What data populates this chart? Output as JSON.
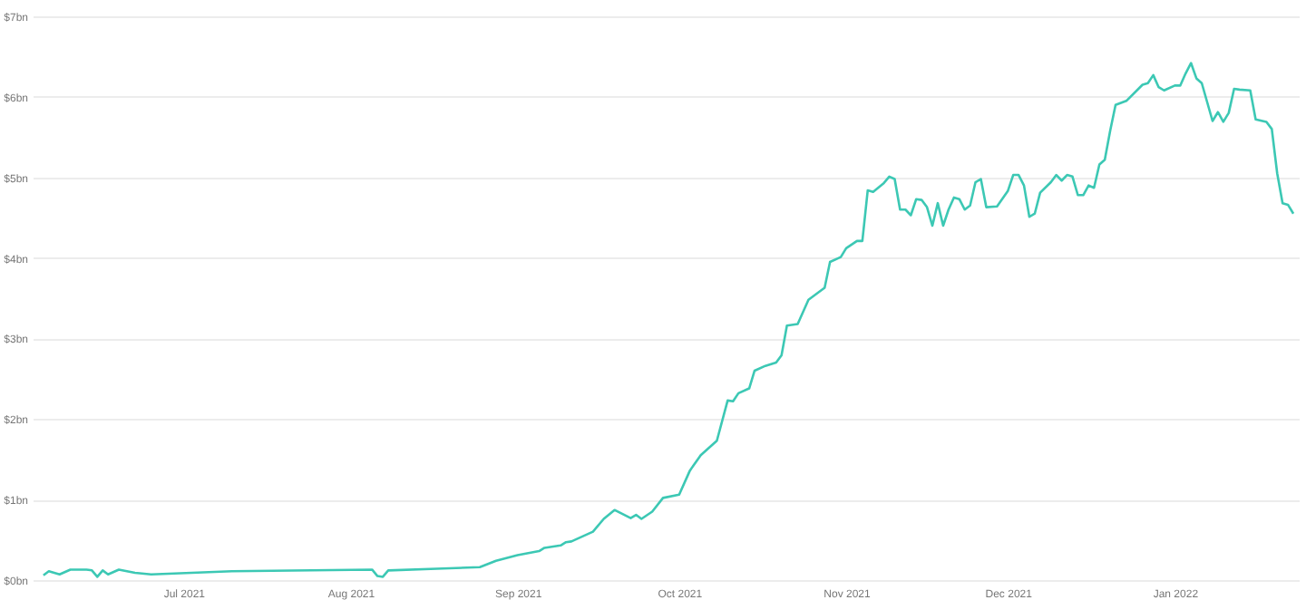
{
  "chart_data": {
    "type": "line",
    "x": [
      "2021-06-05",
      "2021-06-06",
      "2021-06-08",
      "2021-06-10",
      "2021-06-13",
      "2021-06-14",
      "2021-06-15",
      "2021-06-16",
      "2021-06-17",
      "2021-06-19",
      "2021-06-22",
      "2021-06-25",
      "2021-07-10",
      "2021-08-05",
      "2021-08-06",
      "2021-08-07",
      "2021-08-08",
      "2021-08-17",
      "2021-08-25",
      "2021-08-28",
      "2021-09-01",
      "2021-09-05",
      "2021-09-06",
      "2021-09-09",
      "2021-09-10",
      "2021-09-11",
      "2021-09-15",
      "2021-09-17",
      "2021-09-19",
      "2021-09-22",
      "2021-09-23",
      "2021-09-24",
      "2021-09-26",
      "2021-09-28",
      "2021-10-01",
      "2021-10-03",
      "2021-10-05",
      "2021-10-08",
      "2021-10-10",
      "2021-10-11",
      "2021-10-12",
      "2021-10-14",
      "2021-10-15",
      "2021-10-17",
      "2021-10-19",
      "2021-10-20",
      "2021-10-21",
      "2021-10-23",
      "2021-10-25",
      "2021-10-28",
      "2021-10-29",
      "2021-10-31",
      "2021-11-01",
      "2021-11-03",
      "2021-11-04",
      "2021-11-05",
      "2021-11-06",
      "2021-11-08",
      "2021-11-09",
      "2021-11-10",
      "2021-11-11",
      "2021-11-12",
      "2021-11-13",
      "2021-11-14",
      "2021-11-15",
      "2021-11-16",
      "2021-11-17",
      "2021-11-18",
      "2021-11-19",
      "2021-11-20",
      "2021-11-21",
      "2021-11-22",
      "2021-11-23",
      "2021-11-24",
      "2021-11-25",
      "2021-11-26",
      "2021-11-27",
      "2021-11-29",
      "2021-12-01",
      "2021-12-02",
      "2021-12-03",
      "2021-12-04",
      "2021-12-05",
      "2021-12-06",
      "2021-12-07",
      "2021-12-09",
      "2021-12-10",
      "2021-12-11",
      "2021-12-12",
      "2021-12-13",
      "2021-12-14",
      "2021-12-15",
      "2021-12-16",
      "2021-12-17",
      "2021-12-18",
      "2021-12-19",
      "2021-12-20",
      "2021-12-21",
      "2021-12-23",
      "2021-12-26",
      "2021-12-27",
      "2021-12-28",
      "2021-12-29",
      "2021-12-30",
      "2022-01-01",
      "2022-01-02",
      "2022-01-03",
      "2022-01-04",
      "2022-01-05",
      "2022-01-06",
      "2022-01-08",
      "2022-01-09",
      "2022-01-10",
      "2022-01-11",
      "2022-01-12",
      "2022-01-13",
      "2022-01-15",
      "2022-01-16",
      "2022-01-18",
      "2022-01-19",
      "2022-01-20",
      "2022-01-21",
      "2022-01-22",
      "2022-01-23"
    ],
    "series": [
      {
        "color": "#3cc8b4",
        "values": [
          0.06,
          0.11,
          0.07,
          0.13,
          0.13,
          0.12,
          0.04,
          0.12,
          0.07,
          0.13,
          0.09,
          0.07,
          0.11,
          0.13,
          0.05,
          0.04,
          0.12,
          0.14,
          0.16,
          0.24,
          0.31,
          0.36,
          0.4,
          0.43,
          0.47,
          0.48,
          0.6,
          0.76,
          0.87,
          0.77,
          0.81,
          0.76,
          0.85,
          1.02,
          1.06,
          1.36,
          1.55,
          1.73,
          2.23,
          2.22,
          2.32,
          2.38,
          2.6,
          2.66,
          2.7,
          2.79,
          3.16,
          3.18,
          3.48,
          3.63,
          3.95,
          4.01,
          4.12,
          4.21,
          4.21,
          4.84,
          4.82,
          4.93,
          5.01,
          4.98,
          4.6,
          4.6,
          4.53,
          4.73,
          4.72,
          4.63,
          4.4,
          4.68,
          4.4,
          4.6,
          4.75,
          4.73,
          4.6,
          4.65,
          4.94,
          4.98,
          4.63,
          4.64,
          4.83,
          5.03,
          5.03,
          4.9,
          4.51,
          4.55,
          4.81,
          4.94,
          5.03,
          4.96,
          5.03,
          5.01,
          4.78,
          4.78,
          4.9,
          4.87,
          5.16,
          5.22,
          5.58,
          5.9,
          5.95,
          6.15,
          6.17,
          6.27,
          6.12,
          6.08,
          6.14,
          6.14,
          6.29,
          6.42,
          6.23,
          6.17,
          5.7,
          5.81,
          5.69,
          5.8,
          6.1,
          6.09,
          6.08,
          5.72,
          5.69,
          5.6,
          5.05,
          4.68,
          4.66,
          4.55
        ]
      }
    ],
    "xlim": [
      "2021-06-03",
      "2022-01-24"
    ],
    "xticks": [
      {
        "value": "2021-07-01",
        "label": "Jul 2021"
      },
      {
        "value": "2021-08-01",
        "label": "Aug 2021"
      },
      {
        "value": "2021-09-01",
        "label": "Sep 2021"
      },
      {
        "value": "2021-10-01",
        "label": "Oct 2021"
      },
      {
        "value": "2021-11-01",
        "label": "Nov 2021"
      },
      {
        "value": "2021-12-01",
        "label": "Dec 2021"
      },
      {
        "value": "2022-01-01",
        "label": "Jan 2022"
      }
    ],
    "ylim": [
      0,
      7
    ],
    "yticks": [
      {
        "value": 0,
        "label": "$0bn"
      },
      {
        "value": 1,
        "label": "$1bn"
      },
      {
        "value": 2,
        "label": "$2bn"
      },
      {
        "value": 3,
        "label": "$3bn"
      },
      {
        "value": 4,
        "label": "$4bn"
      },
      {
        "value": 5,
        "label": "$5bn"
      },
      {
        "value": 6,
        "label": "$6bn"
      },
      {
        "value": 7,
        "label": "$7bn"
      }
    ],
    "grid": "y",
    "marker": "none",
    "line_style": "solid"
  }
}
